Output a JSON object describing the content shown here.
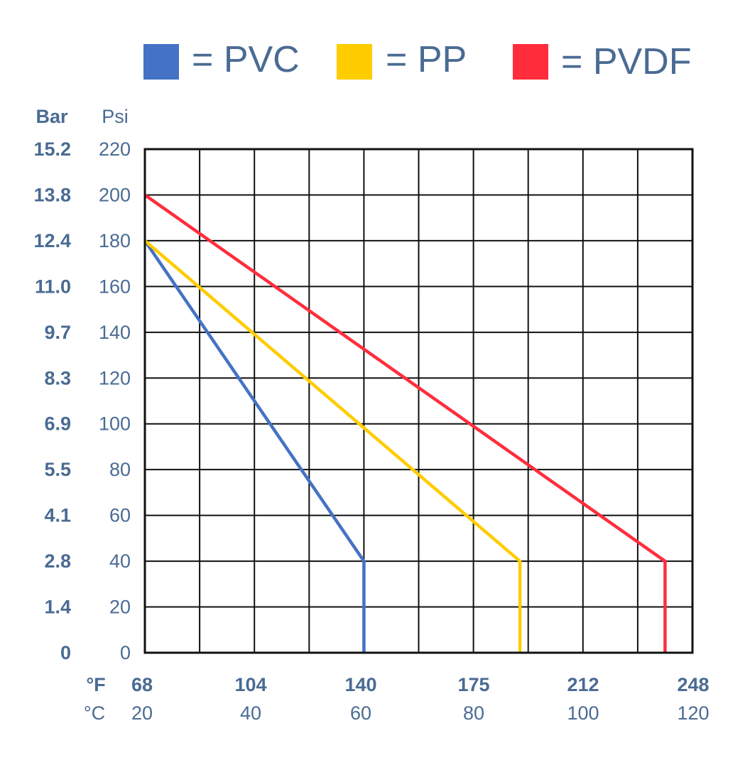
{
  "chart_data": {
    "type": "line",
    "legend": [
      {
        "label": "= PVC",
        "color": "#4472c4"
      },
      {
        "label": "= PP",
        "color": "#ffcc00"
      },
      {
        "label": "= PVDF",
        "color": "#ff2d3c"
      }
    ],
    "y_left_title": "Bar",
    "y_right_title": "Psi",
    "y_bar_ticks": [
      "15.2",
      "13.8",
      "12.4",
      "11.0",
      "9.7",
      "8.3",
      "6.9",
      "5.5",
      "4.1",
      "2.8",
      "1.4",
      "0"
    ],
    "y_psi_ticks": [
      "220",
      "200",
      "180",
      "160",
      "140",
      "120",
      "100",
      "80",
      "60",
      "40",
      "20",
      "0"
    ],
    "x_f_title": "°F",
    "x_c_title": "°C",
    "x_f_ticks": [
      "68",
      "104",
      "140",
      "175",
      "212",
      "248"
    ],
    "x_c_ticks": [
      "20",
      "40",
      "60",
      "80",
      "100",
      "120"
    ],
    "xlim_c": [
      20,
      120
    ],
    "ylim_psi": [
      0,
      220
    ],
    "grid": true,
    "legend_position": "top",
    "series": [
      {
        "name": "PVC",
        "color": "#4472c4",
        "points": [
          [
            20,
            180
          ],
          [
            60,
            40
          ],
          [
            60,
            0
          ]
        ]
      },
      {
        "name": "PP",
        "color": "#ffcc00",
        "points": [
          [
            20,
            180
          ],
          [
            88.5,
            40
          ],
          [
            88.5,
            0
          ]
        ]
      },
      {
        "name": "PVDF",
        "color": "#ff2d3c",
        "points": [
          [
            20,
            200
          ],
          [
            115,
            40
          ],
          [
            115,
            0
          ]
        ]
      }
    ]
  }
}
